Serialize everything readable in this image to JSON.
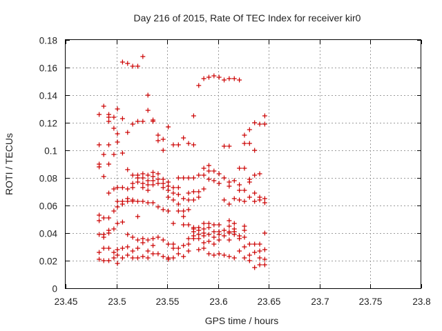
{
  "chart_data": {
    "type": "scatter",
    "title": "Day 216 of 2015, Rate Of TEC Index for receiver kir0",
    "xlabel": "GPS time / hours",
    "ylabel": "ROTI / TECUs",
    "xlim": [
      23.45,
      23.8
    ],
    "ylim": [
      0,
      0.18
    ],
    "xticks": [
      "23.45",
      "23.5",
      "23.55",
      "23.6",
      "23.65",
      "23.7",
      "23.75",
      "23.8"
    ],
    "yticks": [
      "0",
      "0.02",
      "0.04",
      "0.06",
      "0.08",
      "0.1",
      "0.12",
      "0.14",
      "0.16",
      "0.18"
    ],
    "grid": true,
    "marker": "plus",
    "color": "#cc0000",
    "series": [
      {
        "points": [
          [
            23.483,
            0.126
          ],
          [
            23.483,
            0.104
          ],
          [
            23.483,
            0.09
          ],
          [
            23.483,
            0.088
          ],
          [
            23.483,
            0.053
          ],
          [
            23.483,
            0.049
          ],
          [
            23.483,
            0.039
          ],
          [
            23.483,
            0.026
          ],
          [
            23.483,
            0.021
          ],
          [
            23.4875,
            0.132
          ],
          [
            23.4875,
            0.097
          ],
          [
            23.4875,
            0.081
          ],
          [
            23.4875,
            0.051
          ],
          [
            23.4875,
            0.039
          ],
          [
            23.4875,
            0.037
          ],
          [
            23.4875,
            0.029
          ],
          [
            23.4875,
            0.02
          ],
          [
            23.4925,
            0.126
          ],
          [
            23.4925,
            0.124
          ],
          [
            23.4925,
            0.121
          ],
          [
            23.4925,
            0.104
          ],
          [
            23.4925,
            0.09
          ],
          [
            23.4925,
            0.069
          ],
          [
            23.4925,
            0.051
          ],
          [
            23.4925,
            0.042
          ],
          [
            23.4925,
            0.04
          ],
          [
            23.4925,
            0.029
          ],
          [
            23.4925,
            0.02
          ],
          [
            23.4975,
            0.124
          ],
          [
            23.4975,
            0.116
          ],
          [
            23.4975,
            0.097
          ],
          [
            23.4975,
            0.072
          ],
          [
            23.4975,
            0.056
          ],
          [
            23.4975,
            0.043
          ],
          [
            23.4975,
            0.026
          ],
          [
            23.4975,
            0.022
          ],
          [
            23.501,
            0.13
          ],
          [
            23.501,
            0.112
          ],
          [
            23.501,
            0.106
          ],
          [
            23.501,
            0.073
          ],
          [
            23.501,
            0.063
          ],
          [
            23.501,
            0.059
          ],
          [
            23.501,
            0.047
          ],
          [
            23.501,
            0.028
          ],
          [
            23.501,
            0.024
          ],
          [
            23.501,
            0.018
          ],
          [
            23.506,
            0.164
          ],
          [
            23.506,
            0.123
          ],
          [
            23.506,
            0.098
          ],
          [
            23.506,
            0.073
          ],
          [
            23.506,
            0.063
          ],
          [
            23.506,
            0.061
          ],
          [
            23.506,
            0.048
          ],
          [
            23.506,
            0.029
          ],
          [
            23.506,
            0.022
          ],
          [
            23.511,
            0.163
          ],
          [
            23.511,
            0.113
          ],
          [
            23.511,
            0.086
          ],
          [
            23.511,
            0.072
          ],
          [
            23.511,
            0.065
          ],
          [
            23.511,
            0.063
          ],
          [
            23.511,
            0.039
          ],
          [
            23.511,
            0.03
          ],
          [
            23.511,
            0.024
          ],
          [
            23.516,
            0.161
          ],
          [
            23.516,
            0.119
          ],
          [
            23.516,
            0.082
          ],
          [
            23.516,
            0.076
          ],
          [
            23.516,
            0.073
          ],
          [
            23.516,
            0.064
          ],
          [
            23.516,
            0.063
          ],
          [
            23.516,
            0.037
          ],
          [
            23.516,
            0.027
          ],
          [
            23.516,
            0.022
          ],
          [
            23.521,
            0.161
          ],
          [
            23.521,
            0.121
          ],
          [
            23.521,
            0.082
          ],
          [
            23.521,
            0.08
          ],
          [
            23.521,
            0.077
          ],
          [
            23.521,
            0.063
          ],
          [
            23.521,
            0.052
          ],
          [
            23.521,
            0.035
          ],
          [
            23.521,
            0.029
          ],
          [
            23.521,
            0.022
          ],
          [
            23.526,
            0.168
          ],
          [
            23.526,
            0.121
          ],
          [
            23.526,
            0.083
          ],
          [
            23.526,
            0.08
          ],
          [
            23.526,
            0.076
          ],
          [
            23.526,
            0.073
          ],
          [
            23.526,
            0.063
          ],
          [
            23.526,
            0.036
          ],
          [
            23.526,
            0.033
          ],
          [
            23.526,
            0.023
          ],
          [
            23.531,
            0.14
          ],
          [
            23.531,
            0.129
          ],
          [
            23.531,
            0.082
          ],
          [
            23.531,
            0.078
          ],
          [
            23.531,
            0.075
          ],
          [
            23.531,
            0.071
          ],
          [
            23.531,
            0.062
          ],
          [
            23.531,
            0.035
          ],
          [
            23.531,
            0.027
          ],
          [
            23.531,
            0.022
          ],
          [
            23.536,
            0.122
          ],
          [
            23.536,
            0.121
          ],
          [
            23.536,
            0.084
          ],
          [
            23.536,
            0.081
          ],
          [
            23.536,
            0.078
          ],
          [
            23.536,
            0.075
          ],
          [
            23.536,
            0.062
          ],
          [
            23.536,
            0.036
          ],
          [
            23.536,
            0.031
          ],
          [
            23.536,
            0.025
          ],
          [
            23.541,
            0.111
          ],
          [
            23.541,
            0.107
          ],
          [
            23.541,
            0.083
          ],
          [
            23.541,
            0.079
          ],
          [
            23.541,
            0.076
          ],
          [
            23.541,
            0.059
          ],
          [
            23.541,
            0.037
          ],
          [
            23.541,
            0.025
          ],
          [
            23.546,
            0.108
          ],
          [
            23.546,
            0.1
          ],
          [
            23.546,
            0.079
          ],
          [
            23.546,
            0.076
          ],
          [
            23.546,
            0.073
          ],
          [
            23.546,
            0.057
          ],
          [
            23.546,
            0.035
          ],
          [
            23.546,
            0.023
          ],
          [
            23.551,
            0.117
          ],
          [
            23.551,
            0.077
          ],
          [
            23.551,
            0.074
          ],
          [
            23.551,
            0.071
          ],
          [
            23.551,
            0.066
          ],
          [
            23.551,
            0.056
          ],
          [
            23.551,
            0.032
          ],
          [
            23.551,
            0.022
          ],
          [
            23.551,
            0.021
          ],
          [
            23.556,
            0.104
          ],
          [
            23.556,
            0.073
          ],
          [
            23.556,
            0.069
          ],
          [
            23.556,
            0.064
          ],
          [
            23.556,
            0.047
          ],
          [
            23.556,
            0.032
          ],
          [
            23.556,
            0.029
          ],
          [
            23.556,
            0.022
          ],
          [
            23.561,
            0.104
          ],
          [
            23.561,
            0.08
          ],
          [
            23.561,
            0.073
          ],
          [
            23.561,
            0.068
          ],
          [
            23.561,
            0.061
          ],
          [
            23.561,
            0.056
          ],
          [
            23.561,
            0.029
          ],
          [
            23.561,
            0.025
          ],
          [
            23.566,
            0.109
          ],
          [
            23.566,
            0.08
          ],
          [
            23.566,
            0.065
          ],
          [
            23.566,
            0.056
          ],
          [
            23.566,
            0.052
          ],
          [
            23.566,
            0.046
          ],
          [
            23.566,
            0.031
          ],
          [
            23.566,
            0.023
          ],
          [
            23.571,
            0.105
          ],
          [
            23.571,
            0.08
          ],
          [
            23.571,
            0.069
          ],
          [
            23.571,
            0.064
          ],
          [
            23.571,
            0.057
          ],
          [
            23.571,
            0.046
          ],
          [
            23.571,
            0.036
          ],
          [
            23.571,
            0.032
          ],
          [
            23.571,
            0.027
          ],
          [
            23.576,
            0.125
          ],
          [
            23.576,
            0.104
          ],
          [
            23.576,
            0.08
          ],
          [
            23.576,
            0.07
          ],
          [
            23.576,
            0.064
          ],
          [
            23.576,
            0.044
          ],
          [
            23.576,
            0.043
          ],
          [
            23.576,
            0.041
          ],
          [
            23.576,
            0.038
          ],
          [
            23.576,
            0.036
          ],
          [
            23.581,
            0.147
          ],
          [
            23.581,
            0.082
          ],
          [
            23.581,
            0.07
          ],
          [
            23.581,
            0.066
          ],
          [
            23.581,
            0.044
          ],
          [
            23.581,
            0.042
          ],
          [
            23.581,
            0.039
          ],
          [
            23.581,
            0.036
          ],
          [
            23.581,
            0.028
          ],
          [
            23.586,
            0.152
          ],
          [
            23.586,
            0.087
          ],
          [
            23.586,
            0.082
          ],
          [
            23.586,
            0.072
          ],
          [
            23.586,
            0.047
          ],
          [
            23.586,
            0.043
          ],
          [
            23.586,
            0.04
          ],
          [
            23.586,
            0.038
          ],
          [
            23.586,
            0.033
          ],
          [
            23.586,
            0.029
          ],
          [
            23.591,
            0.153
          ],
          [
            23.591,
            0.089
          ],
          [
            23.591,
            0.085
          ],
          [
            23.591,
            0.079
          ],
          [
            23.591,
            0.047
          ],
          [
            23.591,
            0.044
          ],
          [
            23.591,
            0.039
          ],
          [
            23.591,
            0.034
          ],
          [
            23.591,
            0.025
          ],
          [
            23.596,
            0.154
          ],
          [
            23.596,
            0.085
          ],
          [
            23.596,
            0.078
          ],
          [
            23.596,
            0.046
          ],
          [
            23.596,
            0.041
          ],
          [
            23.596,
            0.037
          ],
          [
            23.596,
            0.032
          ],
          [
            23.596,
            0.024
          ],
          [
            23.601,
            0.153
          ],
          [
            23.601,
            0.083
          ],
          [
            23.601,
            0.076
          ],
          [
            23.601,
            0.046
          ],
          [
            23.601,
            0.041
          ],
          [
            23.601,
            0.039
          ],
          [
            23.601,
            0.035
          ],
          [
            23.601,
            0.025
          ],
          [
            23.606,
            0.151
          ],
          [
            23.606,
            0.103
          ],
          [
            23.606,
            0.08
          ],
          [
            23.606,
            0.064
          ],
          [
            23.606,
            0.042
          ],
          [
            23.606,
            0.038
          ],
          [
            23.606,
            0.024
          ],
          [
            23.611,
            0.152
          ],
          [
            23.611,
            0.103
          ],
          [
            23.611,
            0.077
          ],
          [
            23.611,
            0.074
          ],
          [
            23.611,
            0.061
          ],
          [
            23.611,
            0.049
          ],
          [
            23.611,
            0.045
          ],
          [
            23.611,
            0.041
          ],
          [
            23.611,
            0.04
          ],
          [
            23.611,
            0.035
          ],
          [
            23.611,
            0.023
          ],
          [
            23.616,
            0.152
          ],
          [
            23.616,
            0.078
          ],
          [
            23.616,
            0.065
          ],
          [
            23.616,
            0.047
          ],
          [
            23.616,
            0.043
          ],
          [
            23.616,
            0.041
          ],
          [
            23.616,
            0.039
          ],
          [
            23.616,
            0.022
          ],
          [
            23.621,
            0.151
          ],
          [
            23.621,
            0.087
          ],
          [
            23.621,
            0.075
          ],
          [
            23.621,
            0.071
          ],
          [
            23.621,
            0.064
          ],
          [
            23.621,
            0.038
          ],
          [
            23.621,
            0.036
          ],
          [
            23.621,
            0.027
          ],
          [
            23.626,
            0.111
          ],
          [
            23.626,
            0.105
          ],
          [
            23.626,
            0.087
          ],
          [
            23.626,
            0.071
          ],
          [
            23.626,
            0.063
          ],
          [
            23.626,
            0.045
          ],
          [
            23.626,
            0.042
          ],
          [
            23.626,
            0.037
          ],
          [
            23.626,
            0.03
          ],
          [
            23.626,
            0.022
          ],
          [
            23.631,
            0.115
          ],
          [
            23.631,
            0.105
          ],
          [
            23.631,
            0.079
          ],
          [
            23.631,
            0.077
          ],
          [
            23.631,
            0.066
          ],
          [
            23.631,
            0.032
          ],
          [
            23.631,
            0.024
          ],
          [
            23.631,
            0.02
          ],
          [
            23.636,
            0.12
          ],
          [
            23.636,
            0.1
          ],
          [
            23.636,
            0.082
          ],
          [
            23.636,
            0.069
          ],
          [
            23.636,
            0.063
          ],
          [
            23.636,
            0.032
          ],
          [
            23.636,
            0.026
          ],
          [
            23.636,
            0.015
          ],
          [
            23.641,
            0.119
          ],
          [
            23.641,
            0.083
          ],
          [
            23.641,
            0.066
          ],
          [
            23.641,
            0.064
          ],
          [
            23.641,
            0.032
          ],
          [
            23.641,
            0.027
          ],
          [
            23.641,
            0.022
          ],
          [
            23.641,
            0.017
          ],
          [
            23.646,
            0.125
          ],
          [
            23.646,
            0.119
          ],
          [
            23.646,
            0.065
          ],
          [
            23.646,
            0.062
          ],
          [
            23.646,
            0.04
          ],
          [
            23.646,
            0.028
          ],
          [
            23.646,
            0.021
          ],
          [
            23.646,
            0.017
          ]
        ]
      }
    ]
  }
}
